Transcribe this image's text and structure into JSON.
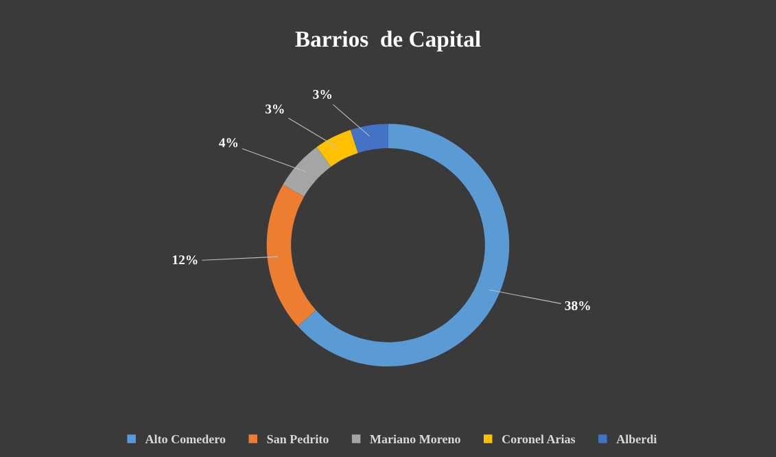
{
  "chart_data": {
    "type": "donut",
    "title": "Barrios  de Capital",
    "categories": [
      "Alto Comedero",
      "San Pedrito",
      "Mariano Moreno",
      "Coronel Arias",
      "Alberdi"
    ],
    "values": [
      38,
      12,
      4,
      3,
      3
    ],
    "value_labels": [
      "38%",
      "12%",
      "4%",
      "3%",
      "3%"
    ],
    "colors": [
      "#5b9bd5",
      "#ed7d31",
      "#a5a5a5",
      "#ffc000",
      "#4472c4"
    ],
    "legend": "bottom"
  }
}
